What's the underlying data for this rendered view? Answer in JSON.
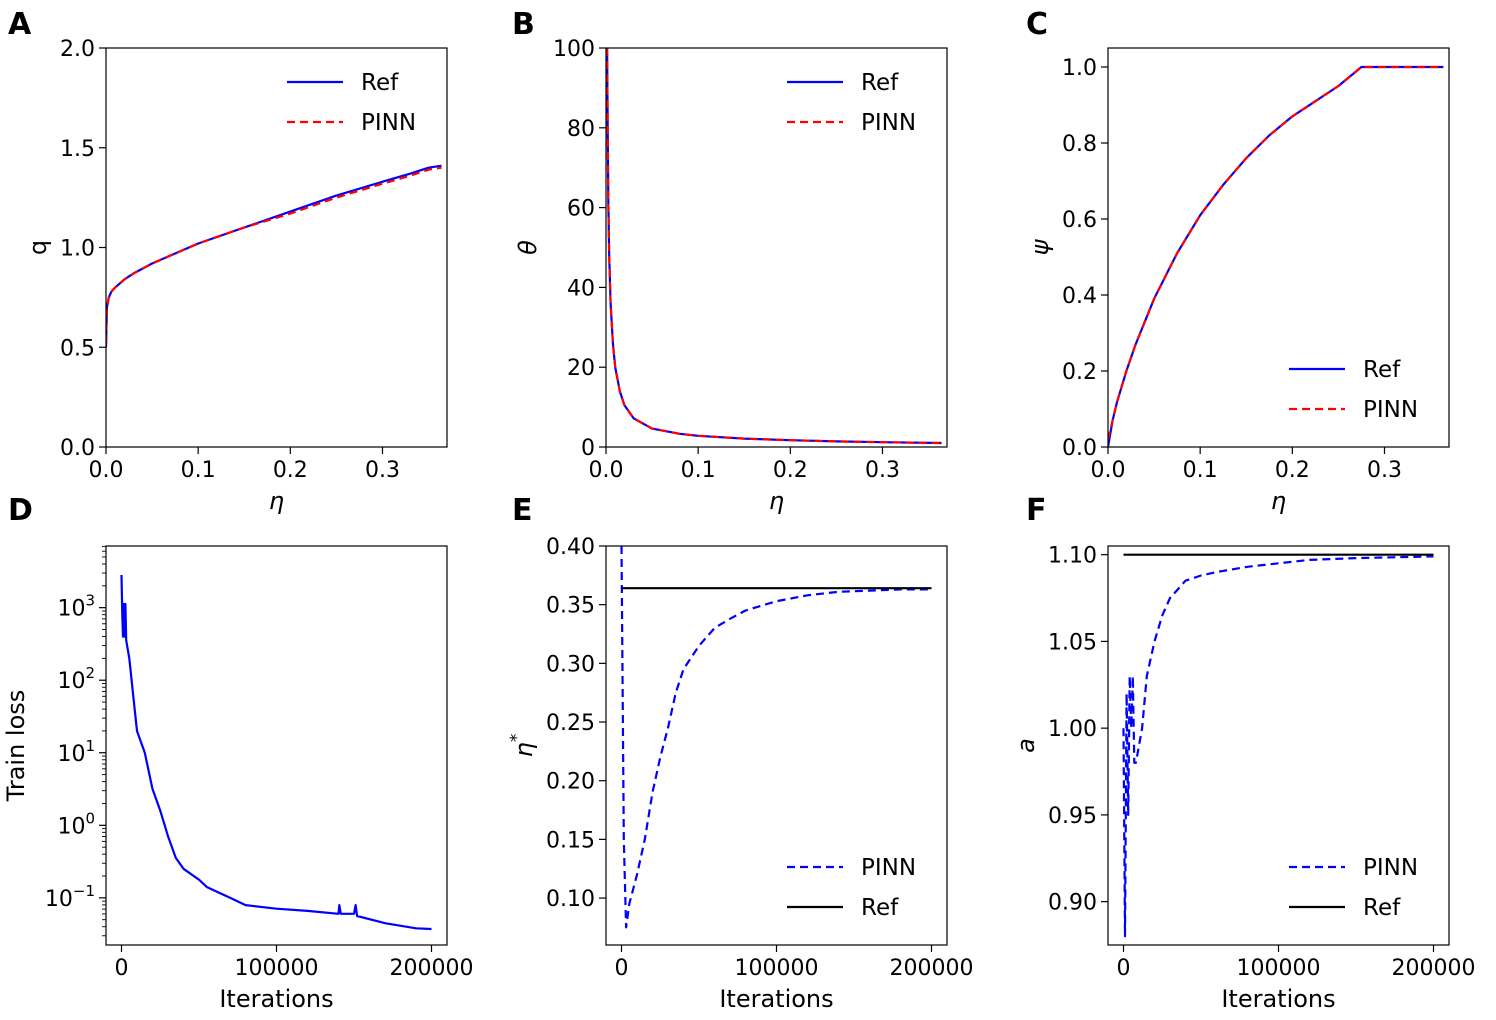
{
  "chart_data": [
    {
      "panel": "A",
      "type": "line",
      "xlabel": "η",
      "ylabel": "q",
      "xlim": [
        0,
        0.37
      ],
      "ylim": [
        0,
        2.0
      ],
      "xticks": [
        0.0,
        0.1,
        0.2,
        0.3
      ],
      "xticklabels": [
        "0.0",
        "0.1",
        "0.2",
        "0.3"
      ],
      "yticks": [
        0.0,
        0.5,
        1.0,
        1.5,
        2.0
      ],
      "yticklabels": [
        "0.0",
        "0.5",
        "1.0",
        "1.5",
        "2.0"
      ],
      "legend": "top-right",
      "series": [
        {
          "name": "Ref",
          "color": "#0000ff",
          "dash": "solid",
          "x": [
            0.0,
            0.001,
            0.003,
            0.006,
            0.01,
            0.02,
            0.03,
            0.05,
            0.08,
            0.1,
            0.15,
            0.2,
            0.25,
            0.3,
            0.33,
            0.35,
            0.364
          ],
          "y": [
            0.5,
            0.7,
            0.75,
            0.78,
            0.8,
            0.84,
            0.87,
            0.92,
            0.98,
            1.02,
            1.1,
            1.18,
            1.26,
            1.33,
            1.37,
            1.4,
            1.41
          ]
        },
        {
          "name": "PINN",
          "color": "#ff0000",
          "dash": "dashed",
          "x": [
            0.0,
            0.001,
            0.003,
            0.006,
            0.01,
            0.02,
            0.03,
            0.05,
            0.08,
            0.1,
            0.15,
            0.2,
            0.25,
            0.3,
            0.33,
            0.35,
            0.364
          ],
          "y": [
            0.52,
            0.7,
            0.75,
            0.78,
            0.8,
            0.84,
            0.87,
            0.92,
            0.98,
            1.02,
            1.1,
            1.17,
            1.25,
            1.32,
            1.36,
            1.39,
            1.4
          ]
        }
      ]
    },
    {
      "panel": "B",
      "type": "line",
      "xlabel": "η",
      "ylabel": "θ",
      "xlim": [
        0,
        0.37
      ],
      "ylim": [
        0,
        100
      ],
      "xticks": [
        0.0,
        0.1,
        0.2,
        0.3
      ],
      "xticklabels": [
        "0.0",
        "0.1",
        "0.2",
        "0.3"
      ],
      "yticks": [
        0,
        20,
        40,
        60,
        80,
        100
      ],
      "yticklabels": [
        "0",
        "20",
        "40",
        "60",
        "80",
        "100"
      ],
      "legend": "top-right",
      "series": [
        {
          "name": "Ref",
          "color": "#0000ff",
          "dash": "solid",
          "x": [
            0.0012,
            0.0018,
            0.0025,
            0.0035,
            0.005,
            0.0075,
            0.01,
            0.015,
            0.02,
            0.03,
            0.05,
            0.08,
            0.1,
            0.15,
            0.2,
            0.25,
            0.3,
            0.364
          ],
          "y": [
            100,
            80,
            62,
            48,
            36,
            26,
            20,
            14,
            10.5,
            7.2,
            4.6,
            3.3,
            2.8,
            2.1,
            1.7,
            1.4,
            1.2,
            1.0
          ]
        },
        {
          "name": "PINN",
          "color": "#ff0000",
          "dash": "dashed",
          "x": [
            0.0012,
            0.0018,
            0.0025,
            0.0035,
            0.005,
            0.0075,
            0.01,
            0.015,
            0.02,
            0.03,
            0.05,
            0.08,
            0.1,
            0.15,
            0.2,
            0.25,
            0.3,
            0.364
          ],
          "y": [
            100,
            80,
            62,
            48,
            36,
            26,
            20,
            14,
            10.5,
            7.2,
            4.6,
            3.3,
            2.8,
            2.1,
            1.7,
            1.4,
            1.2,
            1.0
          ]
        }
      ]
    },
    {
      "panel": "C",
      "type": "line",
      "xlabel": "η",
      "ylabel": "ψ",
      "xlim": [
        0,
        0.37
      ],
      "ylim": [
        0,
        1.05
      ],
      "xticks": [
        0.0,
        0.1,
        0.2,
        0.3
      ],
      "xticklabels": [
        "0.0",
        "0.1",
        "0.2",
        "0.3"
      ],
      "yticks": [
        0.0,
        0.2,
        0.4,
        0.6,
        0.8,
        1.0
      ],
      "yticklabels": [
        "0.0",
        "0.2",
        "0.4",
        "0.6",
        "0.8",
        "1.0"
      ],
      "legend": "bottom-right",
      "series": [
        {
          "name": "Ref",
          "color": "#0000ff",
          "dash": "solid",
          "x": [
            0.0,
            0.005,
            0.01,
            0.02,
            0.03,
            0.05,
            0.075,
            0.1,
            0.125,
            0.15,
            0.175,
            0.2,
            0.225,
            0.25,
            0.265,
            0.275,
            0.3,
            0.35,
            0.364
          ],
          "y": [
            0.0,
            0.07,
            0.12,
            0.2,
            0.27,
            0.39,
            0.51,
            0.61,
            0.69,
            0.76,
            0.82,
            0.87,
            0.91,
            0.95,
            0.98,
            1.0,
            1.0,
            1.0,
            1.0
          ]
        },
        {
          "name": "PINN",
          "color": "#ff0000",
          "dash": "dashed",
          "x": [
            0.0,
            0.005,
            0.01,
            0.02,
            0.03,
            0.05,
            0.075,
            0.1,
            0.125,
            0.15,
            0.175,
            0.2,
            0.225,
            0.25,
            0.265,
            0.275,
            0.3,
            0.35,
            0.364
          ],
          "y": [
            0.02,
            0.07,
            0.12,
            0.2,
            0.27,
            0.39,
            0.51,
            0.61,
            0.69,
            0.76,
            0.82,
            0.87,
            0.91,
            0.95,
            0.98,
            1.0,
            1.0,
            1.0,
            1.0
          ]
        }
      ]
    },
    {
      "panel": "D",
      "type": "line",
      "yscale": "log",
      "xlabel": "Iterations",
      "ylabel": "Train loss",
      "xlim": [
        -10000,
        210000
      ],
      "ylim_log10": [
        -1.65,
        3.85
      ],
      "xticks": [
        0,
        100000,
        200000
      ],
      "xticklabels": [
        "0",
        "100000",
        "200000"
      ],
      "yticks_log10": [
        -1,
        0,
        1,
        2,
        3
      ],
      "yticklabels": [
        {
          "base": "10",
          "exp": "−1"
        },
        {
          "base": "10",
          "exp": "0"
        },
        {
          "base": "10",
          "exp": "1"
        },
        {
          "base": "10",
          "exp": "2"
        },
        {
          "base": "10",
          "exp": "3"
        }
      ],
      "legend": "none",
      "series": [
        {
          "name": "Train loss",
          "color": "#0000ff",
          "dash": "solid",
          "x": [
            0,
            500,
            1000,
            1500,
            2000,
            2500,
            3000,
            5000,
            8000,
            10000,
            15000,
            20000,
            25000,
            30000,
            35000,
            40000,
            50000,
            55000,
            60000,
            70000,
            80000,
            100000,
            120000,
            140000,
            140500,
            141500,
            150000,
            151000,
            152000,
            170000,
            190000,
            200000
          ],
          "y_log10": [
            3.45,
            2.9,
            2.6,
            3.05,
            2.6,
            3.05,
            2.55,
            2.3,
            1.7,
            1.3,
            1.0,
            0.5,
            0.2,
            -0.15,
            -0.45,
            -0.6,
            -0.75,
            -0.85,
            -0.9,
            -1.0,
            -1.1,
            -1.15,
            -1.18,
            -1.22,
            -1.1,
            -1.22,
            -1.22,
            -1.1,
            -1.25,
            -1.35,
            -1.42,
            -1.43
          ]
        }
      ]
    },
    {
      "panel": "E",
      "type": "line",
      "xlabel": "Iterations",
      "ylabel": "η*",
      "xlim": [
        -10000,
        210000
      ],
      "ylim": [
        0.06,
        0.4
      ],
      "xticks": [
        0,
        100000,
        200000
      ],
      "xticklabels": [
        "0",
        "100000",
        "200000"
      ],
      "yticks": [
        0.1,
        0.15,
        0.2,
        0.25,
        0.3,
        0.35,
        0.4
      ],
      "yticklabels": [
        "0.10",
        "0.15",
        "0.20",
        "0.25",
        "0.30",
        "0.35",
        "0.40"
      ],
      "legend": "bottom-right",
      "series": [
        {
          "name": "PINN",
          "color": "#0000ff",
          "dash": "dashed",
          "x": [
            0,
            1500,
            3000,
            5000,
            10000,
            15000,
            20000,
            25000,
            30000,
            35000,
            40000,
            50000,
            60000,
            70000,
            80000,
            100000,
            120000,
            140000,
            160000,
            180000,
            200000
          ],
          "y": [
            0.4,
            0.15,
            0.075,
            0.095,
            0.12,
            0.15,
            0.19,
            0.22,
            0.245,
            0.275,
            0.295,
            0.315,
            0.33,
            0.338,
            0.345,
            0.353,
            0.358,
            0.361,
            0.362,
            0.363,
            0.363
          ]
        },
        {
          "name": "Ref",
          "color": "#000000",
          "dash": "solid",
          "x": [
            0,
            200000
          ],
          "y": [
            0.364,
            0.364
          ]
        }
      ]
    },
    {
      "panel": "F",
      "type": "line",
      "xlabel": "Iterations",
      "ylabel": "a",
      "xlim": [
        -10000,
        210000
      ],
      "ylim": [
        0.875,
        1.105
      ],
      "xticks": [
        0,
        100000,
        200000
      ],
      "xticklabels": [
        "0",
        "100000",
        "200000"
      ],
      "yticks": [
        0.9,
        0.95,
        1.0,
        1.05,
        1.1
      ],
      "yticklabels": [
        "0.90",
        "0.95",
        "1.00",
        "1.05",
        "1.10"
      ],
      "legend": "bottom-right",
      "series": [
        {
          "name": "PINN",
          "color": "#0000ff",
          "dash": "dashed",
          "x": [
            0,
            1000,
            2000,
            3000,
            4000,
            5000,
            6000,
            7000,
            8000,
            10000,
            12000,
            15000,
            20000,
            25000,
            30000,
            35000,
            40000,
            50000,
            60000,
            80000,
            100000,
            120000,
            150000,
            200000
          ],
          "y": [
            1.0,
            0.88,
            1.02,
            0.95,
            1.03,
            1.0,
            1.03,
            0.98,
            0.98,
            0.99,
            1.0,
            1.03,
            1.05,
            1.065,
            1.075,
            1.08,
            1.085,
            1.088,
            1.09,
            1.093,
            1.095,
            1.097,
            1.098,
            1.099
          ]
        },
        {
          "name": "Ref",
          "color": "#000000",
          "dash": "solid",
          "x": [
            0,
            200000
          ],
          "y": [
            1.1,
            1.1
          ]
        }
      ]
    }
  ]
}
